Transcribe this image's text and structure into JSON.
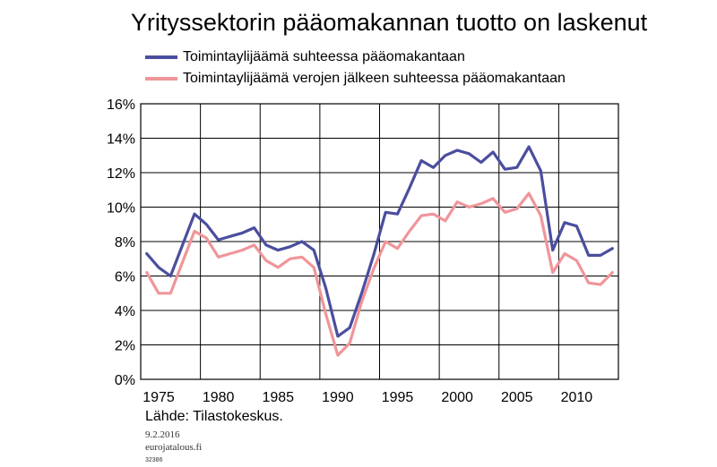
{
  "chart_data": {
    "type": "line",
    "title": "Yrityssektorin pääomakannan tuotto on laskenut",
    "xlabel": "",
    "ylabel": "",
    "xlim": [
      1973.5,
      2013.5
    ],
    "ylim": [
      0,
      16
    ],
    "x_ticks": [
      1975,
      1980,
      1985,
      1990,
      1995,
      2000,
      2005,
      2010
    ],
    "x_tick_labels": [
      "1975",
      "1980",
      "1985",
      "1990",
      "1995",
      "2000",
      "2005",
      "2010"
    ],
    "y_ticks": [
      0,
      2,
      4,
      6,
      8,
      10,
      12,
      14,
      16
    ],
    "y_tick_labels": [
      "0%",
      "2%",
      "4%",
      "6%",
      "8%",
      "10%",
      "12%",
      "14%",
      "16%"
    ],
    "x_gridlines": [
      1978.5,
      1983.5,
      1988.5,
      1993.5,
      1998.5,
      2003.5,
      2008.5
    ],
    "grid": true,
    "legend_position": "top",
    "x": [
      1974,
      1975,
      1976,
      1977,
      1978,
      1979,
      1980,
      1981,
      1982,
      1983,
      1984,
      1985,
      1986,
      1987,
      1988,
      1989,
      1990,
      1991,
      1992,
      1993,
      1994,
      1995,
      1996,
      1997,
      1998,
      1999,
      2000,
      2001,
      2002,
      2003,
      2004,
      2005,
      2006,
      2007,
      2008,
      2009,
      2010,
      2011,
      2012,
      2013
    ],
    "series": [
      {
        "name": "Toimintaylijäämä suhteessa pääomakantaan",
        "color": "#4a4e9e",
        "values": [
          7.3,
          6.5,
          6.0,
          7.8,
          9.6,
          9.0,
          8.1,
          8.3,
          8.5,
          8.8,
          7.8,
          7.5,
          7.7,
          8.0,
          7.5,
          5.3,
          2.5,
          3.0,
          5.0,
          7.2,
          9.7,
          9.6,
          11.1,
          12.7,
          12.3,
          13.0,
          13.3,
          13.1,
          12.6,
          13.2,
          12.2,
          12.3,
          13.5,
          12.1,
          7.5,
          9.1,
          8.9,
          7.2,
          7.2,
          7.6
        ]
      },
      {
        "name": "Toimintaylijäämä verojen jälkeen suhteessa pääomakantaan",
        "color": "#f0959a",
        "values": [
          6.2,
          5.0,
          5.0,
          6.8,
          8.6,
          8.2,
          7.1,
          7.3,
          7.5,
          7.8,
          6.9,
          6.5,
          7.0,
          7.1,
          6.5,
          3.8,
          1.4,
          2.1,
          4.5,
          6.4,
          8.0,
          7.6,
          8.6,
          9.5,
          9.6,
          9.2,
          10.3,
          10.0,
          10.2,
          10.5,
          9.7,
          9.9,
          10.8,
          9.5,
          6.2,
          7.3,
          6.9,
          5.6,
          5.5,
          6.2
        ]
      }
    ]
  },
  "footer": {
    "source": "Lähde: Tilastokeskus.",
    "date": "9.2.2016",
    "site": "eurojatalous.fi",
    "code": "32386"
  }
}
